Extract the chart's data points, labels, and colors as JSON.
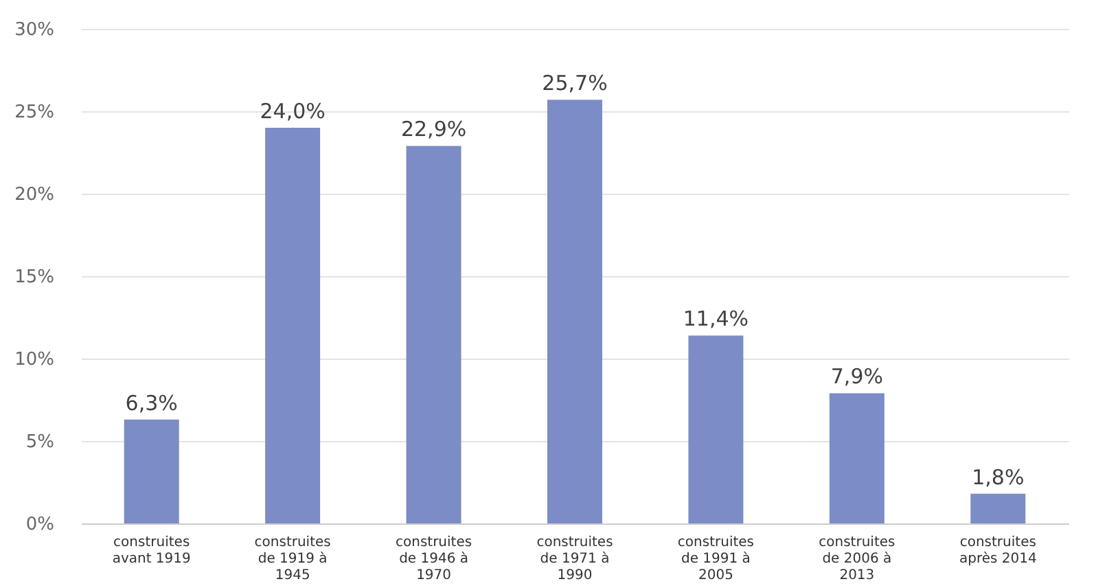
{
  "chart_data": {
    "type": "bar",
    "categories": [
      "construites avant 1919",
      "construites de 1919 à 1945",
      "construites de 1946 à 1970",
      "construites de 1971 à 1990",
      "construites de 1991 à 2005",
      "construites de 2006 à 2013",
      "construites après 2014"
    ],
    "values": [
      6.3,
      24.0,
      22.9,
      25.7,
      11.4,
      7.9,
      1.8
    ],
    "value_labels": [
      "6,3%",
      "24,0%",
      "22,9%",
      "25,7%",
      "11,4%",
      "7,9%",
      "1,8%"
    ],
    "color": "#7b8cc6",
    "ylim": [
      0,
      30
    ],
    "yticks": [
      {
        "value": 0,
        "label": "0%"
      },
      {
        "value": 5,
        "label": "5%"
      },
      {
        "value": 10,
        "label": "10%"
      },
      {
        "value": 15,
        "label": "15%"
      },
      {
        "value": 20,
        "label": "20%"
      },
      {
        "value": 25,
        "label": "25%"
      },
      {
        "value": 30,
        "label": "30%"
      }
    ],
    "grid": "y"
  }
}
